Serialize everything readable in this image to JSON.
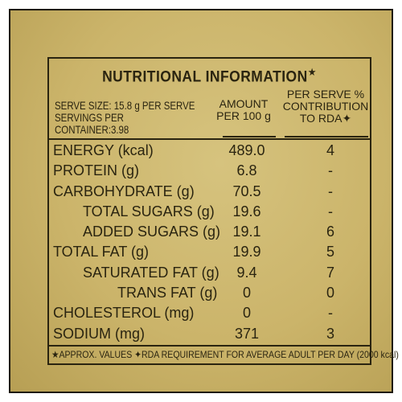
{
  "title": "NUTRITIONAL INFORMATION",
  "title_mark": "★",
  "serve_size": "SERVE SIZE: 15.8 g PER SERVE",
  "servings_per_container": "SERVINGS PER CONTAINER:3.98",
  "col_amount": [
    "AMOUNT",
    "PER 100 g"
  ],
  "col_rda": [
    "PER SERVE %",
    "CONTRIBUTION",
    "TO RDA✦"
  ],
  "rows": [
    {
      "label": "ENERGY (kcal)",
      "indent": 0,
      "amount": "489.0",
      "rda": "4"
    },
    {
      "label": "PROTEIN (g)",
      "indent": 0,
      "amount": "6.8",
      "rda": "-"
    },
    {
      "label": "CARBOHYDRATE (g)",
      "indent": 0,
      "amount": "70.5",
      "rda": "-"
    },
    {
      "label": "TOTAL SUGARS (g)",
      "indent": 1,
      "amount": "19.6",
      "rda": "-"
    },
    {
      "label": "ADDED SUGARS (g)",
      "indent": 1,
      "amount": "19.1",
      "rda": "6"
    },
    {
      "label": "TOTAL FAT (g)",
      "indent": 0,
      "amount": "19.9",
      "rda": "5"
    },
    {
      "label": "SATURATED FAT (g)",
      "indent": 1,
      "amount": "9.4",
      "rda": "7"
    },
    {
      "label": "TRANS FAT (g)",
      "indent": 2,
      "amount": "0",
      "rda": "0"
    },
    {
      "label": "CHOLESTEROL (mg)",
      "indent": 0,
      "amount": "0",
      "rda": "-"
    },
    {
      "label": "SODIUM (mg)",
      "indent": 0,
      "amount": "371",
      "rda": "3"
    }
  ],
  "footnote": "★APPROX. VALUES  ✦RDA REQUIREMENT FOR AVERAGE ADULT PER DAY (2000 kcal)",
  "colors": {
    "background": "#cbb46a",
    "ink": "#2a2410"
  }
}
